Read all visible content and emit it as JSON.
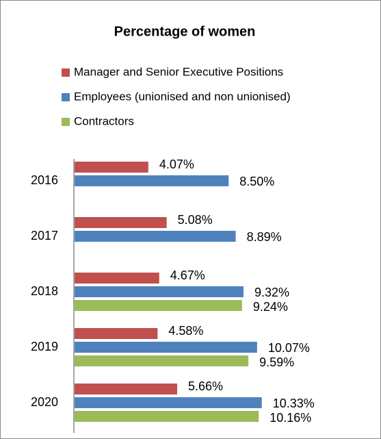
{
  "chart_data": {
    "type": "hbar",
    "title": "Percentage of women",
    "categories": [
      "2016",
      "2017",
      "2018",
      "2019",
      "2020"
    ],
    "series": [
      {
        "name": "Manager and Senior Executive Positions",
        "color": "#c0504d",
        "values": [
          4.07,
          5.08,
          4.67,
          4.58,
          5.66
        ],
        "value_labels": [
          "4.07%",
          "5.08%",
          "4.67%",
          "4.58%",
          "5.66%"
        ]
      },
      {
        "name": "Employees (unionised and non unionised)",
        "color": "#4f81bd",
        "values": [
          8.5,
          8.89,
          9.32,
          10.07,
          10.33
        ],
        "value_labels": [
          "8.50%",
          "8.89%",
          "9.32%",
          "10.07%",
          "10.33%"
        ]
      },
      {
        "name": "Contractors",
        "color": "#9bbb59",
        "values": [
          null,
          null,
          9.24,
          9.59,
          10.16
        ],
        "value_labels": [
          null,
          null,
          "9.24%",
          "9.59%",
          "10.16%"
        ]
      }
    ]
  }
}
